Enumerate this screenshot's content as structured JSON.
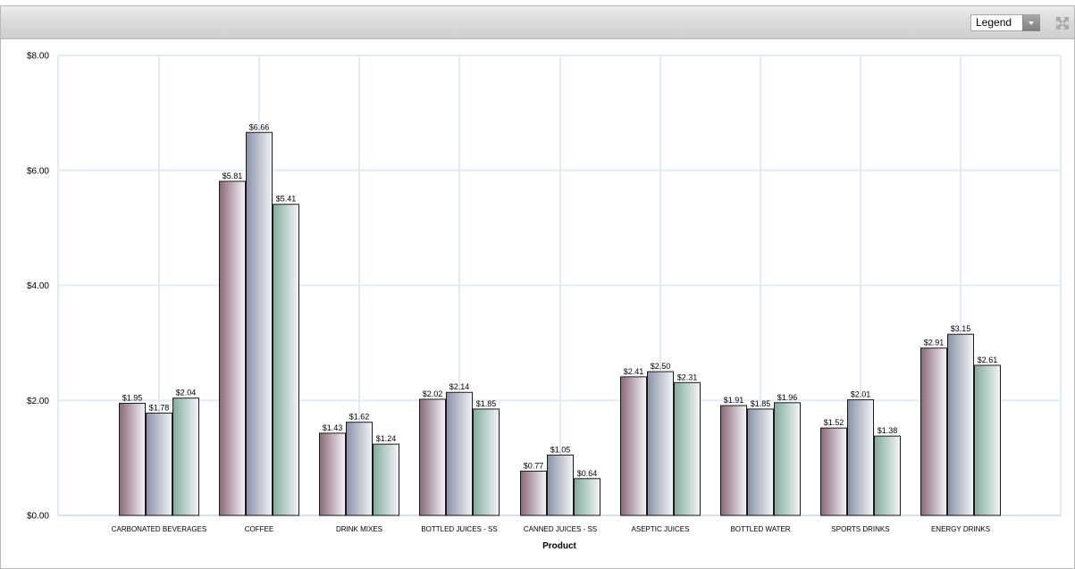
{
  "toolbar": {
    "legend_select": "Legend",
    "maximize_icon": "expand-arrows-icon"
  },
  "chart_data": {
    "type": "bar",
    "xlabel": "Product",
    "ylabel": "",
    "ylim": [
      0,
      8
    ],
    "yticks": [
      "$0.00",
      "$2.00",
      "$4.00",
      "$6.00",
      "$8.00"
    ],
    "grid": true,
    "legend": "hidden (Legend dropdown in toolbar)",
    "categories": [
      "CARBONATED BEVERAGES",
      "COFFEE",
      "DRINK MIXES",
      "BOTTLED JUICES - SS",
      "CANNED JUICES - SS",
      "ASEPTIC JUICES",
      "BOTTLED WATER",
      "SPORTS DRINKS",
      "ENERGY DRINKS"
    ],
    "series": [
      {
        "values": [
          1.95,
          5.81,
          1.43,
          2.02,
          0.77,
          2.41,
          1.91,
          1.52,
          2.91
        ],
        "labels": [
          "$1.95",
          "$5.81",
          "$1.43",
          "$2.02",
          "$0.77",
          "$2.41",
          "$1.91",
          "$1.52",
          "$2.91"
        ],
        "color": "#8a6878"
      },
      {
        "values": [
          1.78,
          6.66,
          1.62,
          2.14,
          1.05,
          2.5,
          1.85,
          2.01,
          3.15
        ],
        "labels": [
          "$1.78",
          "$6.66",
          "$1.62",
          "$2.14",
          "$1.05",
          "$2.50",
          "$1.85",
          "$2.01",
          "$3.15"
        ],
        "color": "#8a90aa"
      },
      {
        "values": [
          2.04,
          5.41,
          1.24,
          1.85,
          0.64,
          2.31,
          1.96,
          1.38,
          2.61
        ],
        "labels": [
          "$2.04",
          "$5.41",
          "$1.24",
          "$1.85",
          "$0.64",
          "$2.31",
          "$1.96",
          "$1.38",
          "$2.61"
        ],
        "color": "#82ab9e"
      }
    ]
  }
}
